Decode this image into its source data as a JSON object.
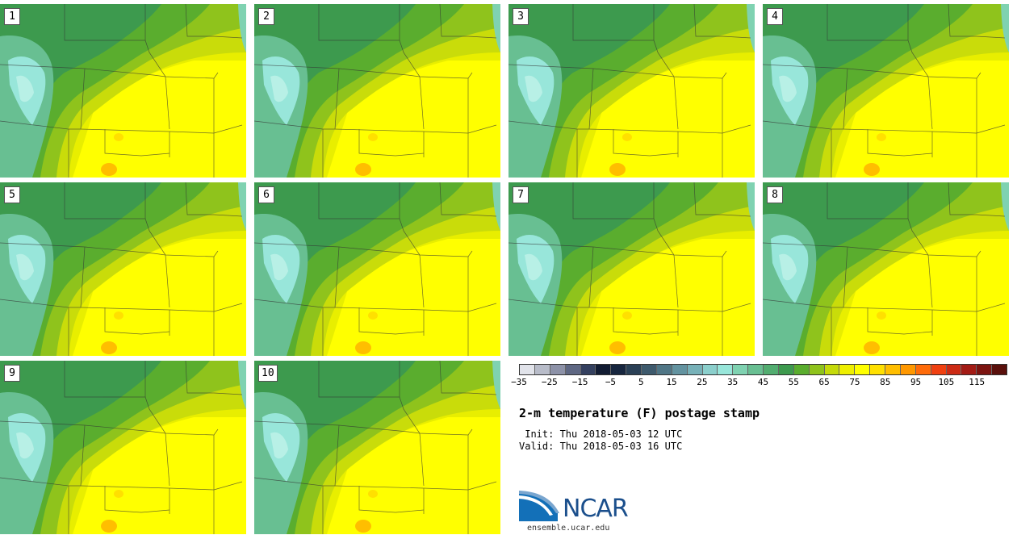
{
  "panels": [
    "1",
    "2",
    "3",
    "4",
    "5",
    "6",
    "7",
    "8",
    "9",
    "10"
  ],
  "colorbar": {
    "colors": [
      "#e1e3ea",
      "#b8bcc9",
      "#8d92a8",
      "#5e6783",
      "#34405f",
      "#121c33",
      "#17263f",
      "#2a4056",
      "#3e5a6d",
      "#507686",
      "#6393a0",
      "#77b1b8",
      "#8bcfcc",
      "#98e6da",
      "#7fd2b1",
      "#68bf92",
      "#52ad70",
      "#3d9a4e",
      "#5aad2e",
      "#8fc31c",
      "#c5da0a",
      "#eeef00",
      "#ffff00",
      "#ffe000",
      "#ffbe00",
      "#ff9800",
      "#ff6b0a",
      "#f04010",
      "#cc2a14",
      "#a31b15",
      "#7c1410",
      "#5a100c"
    ],
    "tick_labels": [
      "−35",
      "−25",
      "−15",
      "−5",
      "5",
      "15",
      "25",
      "35",
      "45",
      "55",
      "65",
      "75",
      "85",
      "95",
      "105",
      "115"
    ]
  },
  "title": "2-m temperature (F) postage stamp",
  "init": " Init: Thu 2018-05-03 12 UTC",
  "valid": "Valid: Thu 2018-05-03 16 UTC",
  "logo_text": "NCAR",
  "site": "ensemble.ucar.edu"
}
